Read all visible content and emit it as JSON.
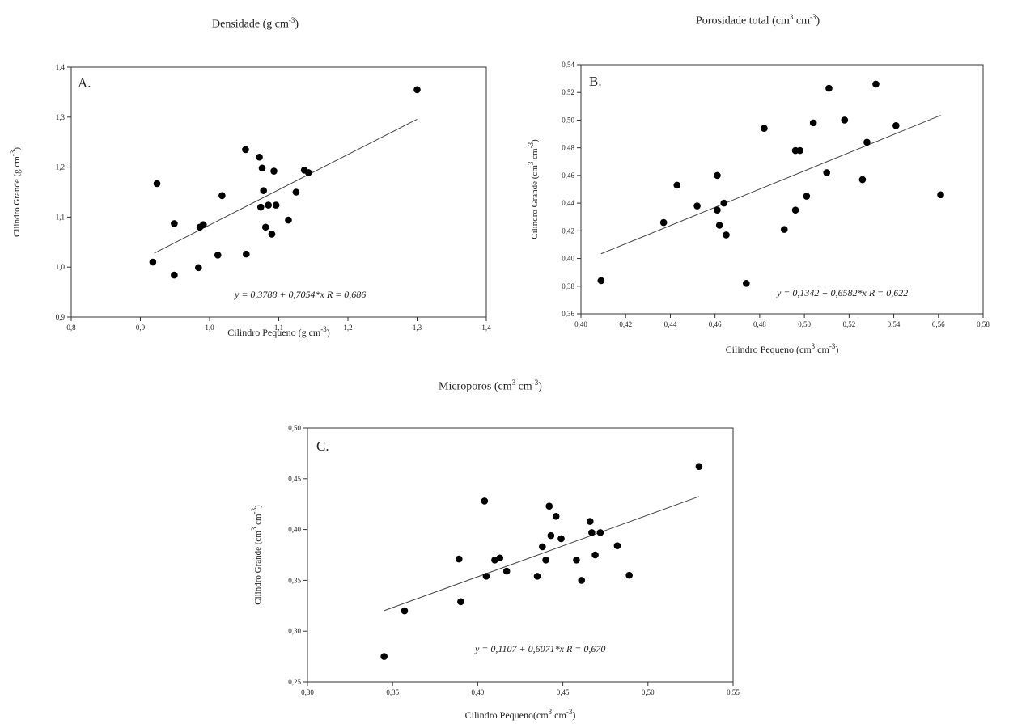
{
  "chart_data": [
    {
      "type": "scatter",
      "title": "Densidade (g cm",
      "title_sup": "-3",
      "title_end": ")",
      "panel_label": "A.",
      "xlabel": "Cilindro Pequeno (g cm",
      "xlabel_sup": "-3",
      "xlabel_end": ")",
      "ylabel": "Cilindro Grande (g cm",
      "ylabel_sup": "-3",
      "ylabel_end": ")",
      "xlim": [
        0.8,
        1.4
      ],
      "ylim": [
        0.9,
        1.4
      ],
      "xticks": [
        "0,8",
        "0,9",
        "1,0",
        "1,1",
        "1,2",
        "1,3",
        "1,4"
      ],
      "yticks": [
        "0,9",
        "1,0",
        "1,1",
        "1,2",
        "1,3",
        "1,4"
      ],
      "equation": "y = 0,3788  + 0,7054*x    R = 0,686",
      "fit": {
        "intercept": 0.3788,
        "slope": 0.7054,
        "x_range": [
          0.92,
          1.3
        ]
      },
      "points": [
        {
          "x": 0.918,
          "y": 1.01
        },
        {
          "x": 0.924,
          "y": 1.167
        },
        {
          "x": 0.949,
          "y": 1.087
        },
        {
          "x": 0.949,
          "y": 0.984
        },
        {
          "x": 0.984,
          "y": 0.999
        },
        {
          "x": 0.986,
          "y": 1.08
        },
        {
          "x": 0.991,
          "y": 1.085
        },
        {
          "x": 1.012,
          "y": 1.024
        },
        {
          "x": 1.018,
          "y": 1.143
        },
        {
          "x": 1.052,
          "y": 1.235
        },
        {
          "x": 1.053,
          "y": 1.026
        },
        {
          "x": 1.072,
          "y": 1.22
        },
        {
          "x": 1.074,
          "y": 1.12
        },
        {
          "x": 1.076,
          "y": 1.198
        },
        {
          "x": 1.078,
          "y": 1.153
        },
        {
          "x": 1.081,
          "y": 1.08
        },
        {
          "x": 1.085,
          "y": 1.124
        },
        {
          "x": 1.09,
          "y": 1.066
        },
        {
          "x": 1.093,
          "y": 1.192
        },
        {
          "x": 1.096,
          "y": 1.124
        },
        {
          "x": 1.114,
          "y": 1.094
        },
        {
          "x": 1.125,
          "y": 1.15
        },
        {
          "x": 1.137,
          "y": 1.194
        },
        {
          "x": 1.143,
          "y": 1.189
        },
        {
          "x": 1.3,
          "y": 1.355
        }
      ]
    },
    {
      "type": "scatter",
      "title": "Porosidade total (cm",
      "title_sup": "3",
      "title_mid": " cm",
      "title_sup2": "-3",
      "title_end": ")",
      "panel_label": "B.",
      "xlabel": "Cilindro Pequeno (cm",
      "xlabel_sup": "3",
      "xlabel_mid": " cm",
      "xlabel_sup2": "-3",
      "xlabel_end": ")",
      "ylabel": "Cilindro Grande (cm",
      "ylabel_sup": "3",
      "ylabel_mid": " cm",
      "ylabel_sup2": "-3",
      "ylabel_end": ")",
      "xlim": [
        0.4,
        0.58
      ],
      "ylim": [
        0.36,
        0.54
      ],
      "xticks": [
        "0,40",
        "0,42",
        "0,44",
        "0,46",
        "0,48",
        "0,50",
        "0,52",
        "0,54",
        "0,56",
        "0,58"
      ],
      "yticks": [
        "0,36",
        "0,38",
        "0,40",
        "0,42",
        "0,44",
        "0,46",
        "0,48",
        "0,50",
        "0,52",
        "0,54"
      ],
      "equation": "y = 0,1342 + 0,6582*x   R = 0,622",
      "fit": {
        "intercept": 0.1342,
        "slope": 0.6582,
        "x_range": [
          0.409,
          0.561
        ]
      },
      "points": [
        {
          "x": 0.409,
          "y": 0.384
        },
        {
          "x": 0.437,
          "y": 0.426
        },
        {
          "x": 0.443,
          "y": 0.453
        },
        {
          "x": 0.452,
          "y": 0.438
        },
        {
          "x": 0.461,
          "y": 0.46
        },
        {
          "x": 0.461,
          "y": 0.435
        },
        {
          "x": 0.462,
          "y": 0.424
        },
        {
          "x": 0.464,
          "y": 0.44
        },
        {
          "x": 0.465,
          "y": 0.417
        },
        {
          "x": 0.474,
          "y": 0.382
        },
        {
          "x": 0.482,
          "y": 0.494
        },
        {
          "x": 0.491,
          "y": 0.421
        },
        {
          "x": 0.496,
          "y": 0.435
        },
        {
          "x": 0.496,
          "y": 0.478
        },
        {
          "x": 0.498,
          "y": 0.478
        },
        {
          "x": 0.501,
          "y": 0.445
        },
        {
          "x": 0.504,
          "y": 0.498
        },
        {
          "x": 0.51,
          "y": 0.462
        },
        {
          "x": 0.511,
          "y": 0.523
        },
        {
          "x": 0.518,
          "y": 0.5
        },
        {
          "x": 0.526,
          "y": 0.457
        },
        {
          "x": 0.528,
          "y": 0.484
        },
        {
          "x": 0.532,
          "y": 0.526
        },
        {
          "x": 0.541,
          "y": 0.496
        },
        {
          "x": 0.561,
          "y": 0.446
        }
      ]
    },
    {
      "type": "scatter",
      "title": "Microporos (cm",
      "title_sup": "3",
      "title_mid": " cm",
      "title_sup2": "-3",
      "title_end": ")",
      "panel_label": "C.",
      "xlabel": "Cilindro Pequeno(cm",
      "xlabel_sup": "3",
      "xlabel_mid": " cm",
      "xlabel_sup2": "-3",
      "xlabel_end": ")",
      "ylabel": "Cilindro Grande (cm",
      "ylabel_sup": "3",
      "ylabel_mid": " cm",
      "ylabel_sup2": "-3",
      "ylabel_end": ")",
      "xlim": [
        0.3,
        0.55
      ],
      "ylim": [
        0.25,
        0.5
      ],
      "xticks": [
        "0,30",
        "0,35",
        "0,40",
        "0,45",
        "0,50",
        "0,55"
      ],
      "yticks": [
        "0,25",
        "0,30",
        "0,35",
        "0,40",
        "0,45",
        "0,50"
      ],
      "equation": "y = 0,1107 + 0,6071*x   R = 0,670",
      "fit": {
        "intercept": 0.1107,
        "slope": 0.6071,
        "x_range": [
          0.345,
          0.53
        ]
      },
      "points": [
        {
          "x": 0.345,
          "y": 0.275
        },
        {
          "x": 0.357,
          "y": 0.32
        },
        {
          "x": 0.389,
          "y": 0.371
        },
        {
          "x": 0.39,
          "y": 0.329
        },
        {
          "x": 0.404,
          "y": 0.428
        },
        {
          "x": 0.405,
          "y": 0.354
        },
        {
          "x": 0.41,
          "y": 0.37
        },
        {
          "x": 0.413,
          "y": 0.372
        },
        {
          "x": 0.417,
          "y": 0.359
        },
        {
          "x": 0.435,
          "y": 0.354
        },
        {
          "x": 0.438,
          "y": 0.383
        },
        {
          "x": 0.44,
          "y": 0.37
        },
        {
          "x": 0.442,
          "y": 0.423
        },
        {
          "x": 0.443,
          "y": 0.394
        },
        {
          "x": 0.446,
          "y": 0.413
        },
        {
          "x": 0.449,
          "y": 0.391
        },
        {
          "x": 0.458,
          "y": 0.37
        },
        {
          "x": 0.461,
          "y": 0.35
        },
        {
          "x": 0.466,
          "y": 0.408
        },
        {
          "x": 0.467,
          "y": 0.397
        },
        {
          "x": 0.469,
          "y": 0.375
        },
        {
          "x": 0.472,
          "y": 0.397
        },
        {
          "x": 0.482,
          "y": 0.384
        },
        {
          "x": 0.489,
          "y": 0.355
        },
        {
          "x": 0.53,
          "y": 0.462
        }
      ]
    }
  ]
}
